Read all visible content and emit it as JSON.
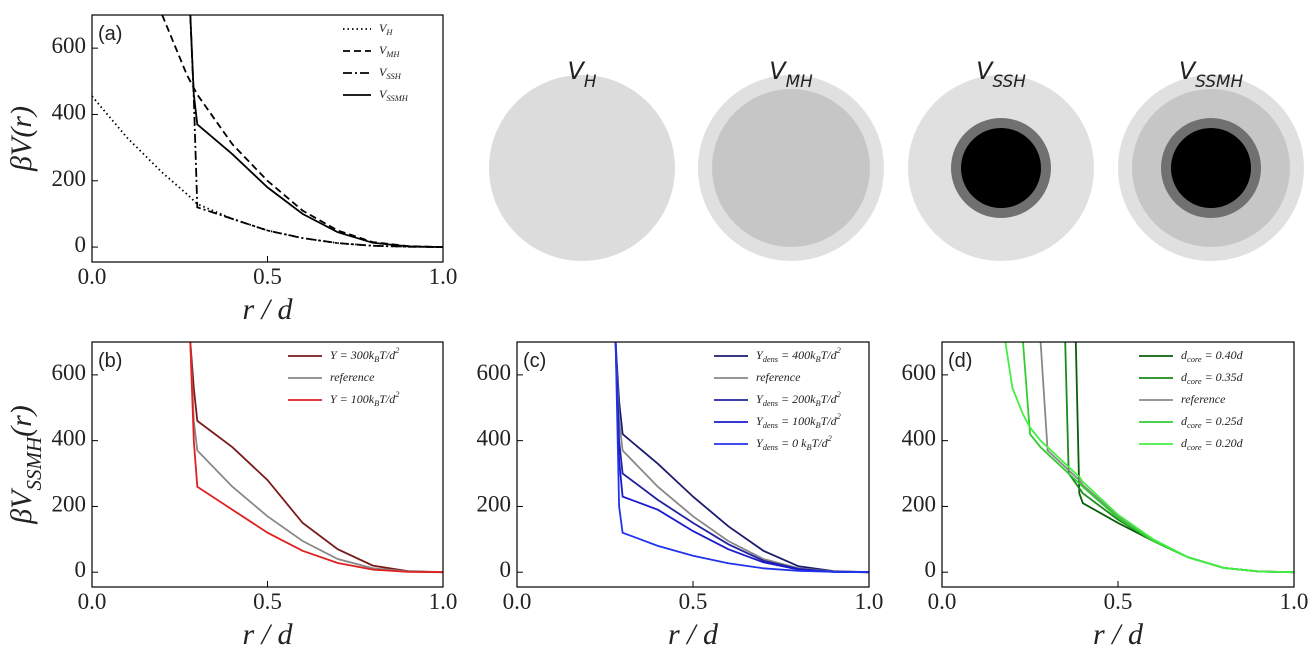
{
  "chart_data": [
    {
      "type": "line",
      "label": "(a)",
      "ylabel": "βV(r)",
      "xlabel": "r / d",
      "xlim": [
        0,
        1
      ],
      "ylim": [
        -45,
        700
      ],
      "xticks": [
        {
          "value": 0,
          "label": "0.0"
        },
        0.5,
        {
          "value": 1,
          "label": "1.0"
        }
      ],
      "yticks": [
        0,
        200,
        400,
        600
      ],
      "legend": "upper right",
      "x": [
        0,
        0.1,
        0.2,
        0.27,
        0.28,
        0.29,
        0.3,
        0.4,
        0.5,
        0.6,
        0.7,
        0.8,
        0.9,
        1.0
      ],
      "series": [
        {
          "name": "V_{H}",
          "color": "#000000",
          "dash": "dotted",
          "values": [
            455,
            330,
            225,
            160,
            150,
            140,
            130,
            85,
            50,
            27,
            12,
            4,
            1,
            0
          ]
        },
        {
          "name": "V_{MH}",
          "color": "#000000",
          "dash": "dashed",
          "values": [
            null,
            null,
            700,
            520,
            500,
            480,
            460,
            310,
            200,
            110,
            50,
            15,
            3,
            0
          ]
        },
        {
          "name": "V_{SSH}",
          "color": "#000000",
          "dash": "dashdot",
          "values": [
            null,
            null,
            null,
            null,
            700,
            450,
            120,
            85,
            50,
            27,
            12,
            4,
            1,
            0
          ]
        },
        {
          "name": "V_{SSMH}",
          "color": "#000000",
          "dash": "solid",
          "values": [
            null,
            null,
            null,
            null,
            700,
            460,
            370,
            280,
            180,
            100,
            45,
            13,
            2,
            0
          ]
        }
      ]
    },
    {
      "type": "line",
      "label": "(b)",
      "ylabel": "βV_{SSMH}(r)",
      "xlabel": "r / d",
      "xlim": [
        0,
        1
      ],
      "ylim": [
        -45,
        700
      ],
      "xticks": [
        {
          "value": 0,
          "label": "0.0"
        },
        0.5,
        {
          "value": 1,
          "label": "1.0"
        }
      ],
      "yticks": [
        0,
        200,
        400,
        600
      ],
      "legend": "upper right",
      "x": [
        0.28,
        0.29,
        0.3,
        0.4,
        0.5,
        0.6,
        0.7,
        0.8,
        0.9,
        1.0
      ],
      "series": [
        {
          "name": "Y = 300k_{B}T/d^{2}",
          "color": "#7a1a1a",
          "dash": "solid",
          "values": [
            700,
            560,
            460,
            380,
            280,
            150,
            70,
            20,
            3,
            0
          ]
        },
        {
          "name": "reference",
          "color": "#888888",
          "dash": "solid",
          "values": [
            700,
            460,
            370,
            260,
            170,
            95,
            40,
            12,
            2,
            0
          ]
        },
        {
          "name": "Y = 100k_{B}T/d^{2}",
          "color": "#e02020",
          "dash": "solid",
          "values": [
            700,
            400,
            260,
            190,
            120,
            65,
            28,
            8,
            1,
            0
          ]
        }
      ]
    },
    {
      "type": "line",
      "label": "(c)",
      "xlabel": "r / d",
      "xlim": [
        0,
        1
      ],
      "ylim": [
        -45,
        700
      ],
      "xticks": [
        {
          "value": 0,
          "label": "0.0"
        },
        0.5,
        {
          "value": 1,
          "label": "1.0"
        }
      ],
      "yticks": [
        0,
        200,
        400,
        600
      ],
      "legend": "upper right",
      "x": [
        0.28,
        0.29,
        0.3,
        0.4,
        0.5,
        0.6,
        0.7,
        0.8,
        0.9,
        1.0
      ],
      "series": [
        {
          "name": "Y_{dens} = 400k_{B}T/d^{2}",
          "color": "#1c1c6e",
          "dash": "solid",
          "values": [
            700,
            520,
            420,
            330,
            230,
            140,
            65,
            18,
            3,
            0
          ]
        },
        {
          "name": "reference",
          "color": "#888888",
          "dash": "solid",
          "values": [
            700,
            460,
            370,
            260,
            170,
            95,
            40,
            12,
            2,
            0
          ]
        },
        {
          "name": "Y_{dens} = 200k_{B}T/d^{2}",
          "color": "#2222a0",
          "dash": "solid",
          "values": [
            700,
            400,
            300,
            220,
            150,
            85,
            35,
            10,
            1,
            0
          ]
        },
        {
          "name": "Y_{dens} = 100k_{B}T/d^{2}",
          "color": "#1a1acc",
          "dash": "solid",
          "values": [
            700,
            340,
            230,
            190,
            125,
            70,
            30,
            8,
            1,
            0
          ]
        },
        {
          "name": "Y_{dens} = 0 k_{B}T/d^{2}",
          "color": "#2233ee",
          "dash": "solid",
          "values": [
            700,
            200,
            120,
            80,
            50,
            27,
            12,
            4,
            1,
            0
          ]
        }
      ]
    },
    {
      "type": "line",
      "label": "(d)",
      "xlabel": "r / d",
      "xlim": [
        0,
        1
      ],
      "ylim": [
        -45,
        700
      ],
      "xticks": [
        {
          "value": 0,
          "label": "0.0"
        },
        0.5,
        {
          "value": 1,
          "label": "1.0"
        }
      ],
      "yticks": [
        0,
        200,
        400,
        600
      ],
      "legend": "upper right",
      "x": [
        0.18,
        0.2,
        0.23,
        0.25,
        0.28,
        0.3,
        0.33,
        0.35,
        0.36,
        0.38,
        0.39,
        0.4,
        0.5,
        0.6,
        0.7,
        0.8,
        0.9,
        1.0
      ],
      "series": [
        {
          "name": "d_{core} = 0.40d",
          "color": "#0b5e0b",
          "dash": "solid",
          "values": [
            null,
            null,
            null,
            null,
            null,
            null,
            null,
            null,
            null,
            700,
            240,
            210,
            150,
            95,
            45,
            13,
            2,
            0
          ]
        },
        {
          "name": "d_{core} = 0.35d",
          "color": "#1a8a1a",
          "dash": "solid",
          "values": [
            null,
            null,
            null,
            null,
            null,
            null,
            null,
            700,
            300,
            270,
            255,
            240,
            160,
            95,
            45,
            13,
            2,
            0
          ]
        },
        {
          "name": "reference",
          "color": "#888888",
          "dash": "solid",
          "values": [
            null,
            null,
            null,
            null,
            700,
            370,
            340,
            320,
            310,
            290,
            280,
            265,
            170,
            95,
            45,
            13,
            2,
            0
          ]
        },
        {
          "name": "d_{core} = 0.25d",
          "color": "#33cc33",
          "dash": "solid",
          "values": [
            null,
            null,
            700,
            420,
            380,
            360,
            330,
            310,
            300,
            280,
            270,
            260,
            165,
            95,
            45,
            13,
            2,
            0
          ]
        },
        {
          "name": "d_{core} = 0.20d",
          "color": "#44ee44",
          "dash": "solid",
          "values": [
            700,
            560,
            480,
            440,
            400,
            380,
            350,
            330,
            320,
            300,
            290,
            275,
            175,
            100,
            45,
            13,
            2,
            0
          ]
        }
      ]
    }
  ],
  "diagram": {
    "labels": [
      "V_{H}",
      "V_{MH}",
      "V_{SSH}",
      "V_{SSMH}"
    ]
  }
}
